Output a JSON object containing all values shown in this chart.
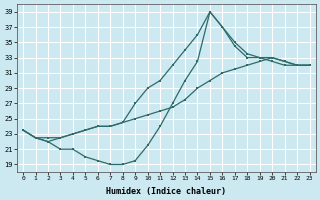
{
  "xlabel": "Humidex (Indice chaleur)",
  "bg_color": "#cce8f0",
  "grid_color": "#ffffff",
  "line_color": "#2d6b6b",
  "xlim": [
    -0.5,
    23.5
  ],
  "ylim": [
    18,
    40
  ],
  "yticks": [
    19,
    21,
    23,
    25,
    27,
    29,
    31,
    33,
    35,
    37,
    39
  ],
  "xticks": [
    0,
    1,
    2,
    3,
    4,
    5,
    6,
    7,
    8,
    9,
    10,
    11,
    12,
    13,
    14,
    15,
    16,
    17,
    18,
    19,
    20,
    21,
    22,
    23
  ],
  "line1_x": [
    0,
    1,
    2,
    3,
    4,
    5,
    6,
    7,
    8,
    9,
    10,
    11,
    12,
    13,
    14,
    15,
    16,
    17,
    18,
    19,
    20,
    21,
    22,
    23
  ],
  "line1_y": [
    23.5,
    22.5,
    22.0,
    21.0,
    21.0,
    20.0,
    19.5,
    19.0,
    19.0,
    19.5,
    21.5,
    24.0,
    27.0,
    30.0,
    32.5,
    39.0,
    37.0,
    34.5,
    33.0,
    33.0,
    32.5,
    32.0,
    32.0,
    32.0
  ],
  "line2_x": [
    0,
    1,
    2,
    3,
    4,
    5,
    6,
    7,
    8,
    9,
    10,
    11,
    12,
    13,
    14,
    15,
    16,
    17,
    18,
    19,
    20,
    21,
    22,
    23
  ],
  "line2_y": [
    23.5,
    22.5,
    22.5,
    22.5,
    23.0,
    23.5,
    24.0,
    24.0,
    24.5,
    25.0,
    25.5,
    26.0,
    26.5,
    27.5,
    29.0,
    30.0,
    31.0,
    31.5,
    32.0,
    32.5,
    33.0,
    32.5,
    32.0,
    32.0
  ],
  "line3_x": [
    0,
    1,
    2,
    3,
    4,
    5,
    6,
    7,
    8,
    9,
    10,
    11,
    12,
    13,
    14,
    15,
    16,
    17,
    18,
    19,
    20,
    21,
    22,
    23
  ],
  "line3_y": [
    23.5,
    22.5,
    22.0,
    22.5,
    23.0,
    23.5,
    24.0,
    24.0,
    24.5,
    27.0,
    29.0,
    30.0,
    32.0,
    34.0,
    36.0,
    39.0,
    37.0,
    35.0,
    33.5,
    33.0,
    33.0,
    32.5,
    32.0,
    32.0
  ]
}
